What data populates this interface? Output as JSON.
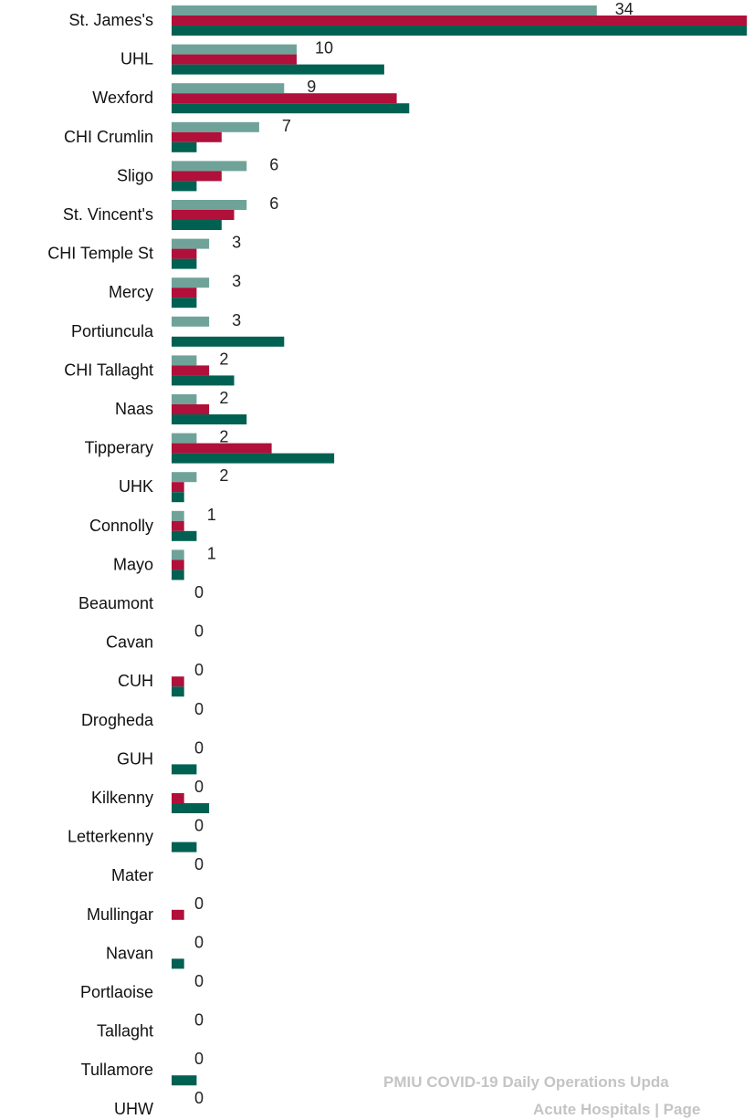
{
  "chart_data": {
    "type": "bar",
    "orientation": "horizontal",
    "categories": [
      "St. James's",
      "UHL",
      "Wexford",
      "CHI Crumlin",
      "Sligo",
      "St. Vincent's",
      "CHI Temple St",
      "Mercy",
      "Portiuncula",
      "CHI Tallaght",
      "Naas",
      "Tipperary",
      "UHK",
      "Connolly",
      "Mayo",
      "Beaumont",
      "Cavan",
      "CUH",
      "Drogheda",
      "GUH",
      "Kilkenny",
      "Letterkenny",
      "Mater",
      "Mullingar",
      "Navan",
      "Portlaoise",
      "Tallaght",
      "Tullamore",
      "UHW"
    ],
    "series": [
      {
        "color": "#6fa39a",
        "values": [
          34,
          10,
          9,
          7,
          6,
          6,
          3,
          3,
          3,
          2,
          2,
          2,
          2,
          1,
          1,
          0,
          0,
          0,
          0,
          0,
          0,
          0,
          0,
          0,
          0,
          0,
          0,
          0,
          0
        ]
      },
      {
        "color": "#b0103a",
        "values": [
          46,
          10,
          18,
          4,
          4,
          5,
          2,
          2,
          0,
          3,
          3,
          8,
          1,
          1,
          1,
          0,
          0,
          1,
          0,
          0,
          1,
          0,
          0,
          1,
          0,
          0,
          0,
          0,
          0
        ]
      },
      {
        "color": "#006152",
        "values": [
          46,
          17,
          19,
          2,
          2,
          4,
          2,
          2,
          9,
          5,
          6,
          13,
          1,
          2,
          1,
          0,
          0,
          1,
          0,
          2,
          3,
          2,
          0,
          0,
          1,
          0,
          0,
          2,
          0
        ]
      }
    ],
    "data_labels": [
      "34",
      "10",
      "9",
      "7",
      "6",
      "6",
      "3",
      "3",
      "3",
      "2",
      "2",
      "2",
      "2",
      "1",
      "1",
      "0",
      "0",
      "0",
      "0",
      "0",
      "0",
      "0",
      "0",
      "0",
      "0",
      "0",
      "0",
      "0",
      "0"
    ],
    "legend": "none",
    "grid": false
  },
  "footer": {
    "line1": "PMIU COVID-19 Daily Operations Upda",
    "line2": "Acute Hospitals |  Page"
  }
}
